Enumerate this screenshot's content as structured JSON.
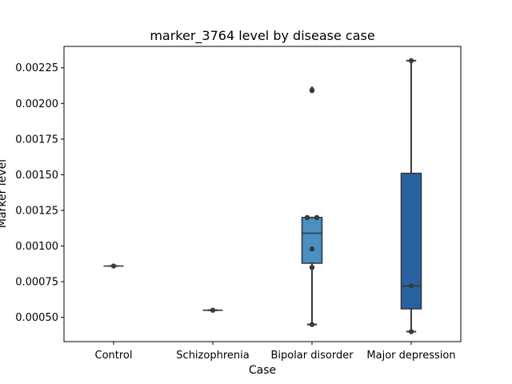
{
  "chart_data": {
    "type": "box",
    "title": "marker_3764 level by disease case",
    "xlabel": "Case",
    "ylabel": "Marker level",
    "categories": [
      "Control",
      "Schizophrenia",
      "Bipolar disorder",
      "Major depression"
    ],
    "ylim": [
      0.00033,
      0.0024
    ],
    "yticks": [
      "0.00050",
      "0.00075",
      "0.00100",
      "0.00125",
      "0.00150",
      "0.00175",
      "0.00200",
      "0.00225"
    ],
    "grid": false,
    "boxes": [
      {
        "category": "Control",
        "color": "#c6dbef",
        "min": 0.00086,
        "q1": 0.00086,
        "median": 0.00086,
        "q3": 0.00086,
        "max": 0.00086,
        "outliers": [],
        "points": [
          0.00086
        ]
      },
      {
        "category": "Schizophrenia",
        "color": "#9ecae1",
        "min": 0.00055,
        "q1": 0.00055,
        "median": 0.00055,
        "q3": 0.00055,
        "max": 0.00055,
        "outliers": [],
        "points": [
          0.00055
        ]
      },
      {
        "category": "Bipolar disorder",
        "color": "#4a90c2",
        "min": 0.00045,
        "q1": 0.00088,
        "median": 0.00109,
        "q3": 0.0012,
        "max": 0.0012,
        "outliers": [
          0.0021
        ],
        "points": [
          0.0012,
          0.0012,
          0.00098,
          0.00085,
          0.00045,
          0.00209
        ]
      },
      {
        "category": "Major depression",
        "color": "#2861a0",
        "min": 0.0004,
        "q1": 0.00056,
        "median": 0.00072,
        "q3": 0.00151,
        "max": 0.0023,
        "outliers": [],
        "points": [
          0.0023,
          0.00072,
          0.0004
        ]
      }
    ]
  }
}
